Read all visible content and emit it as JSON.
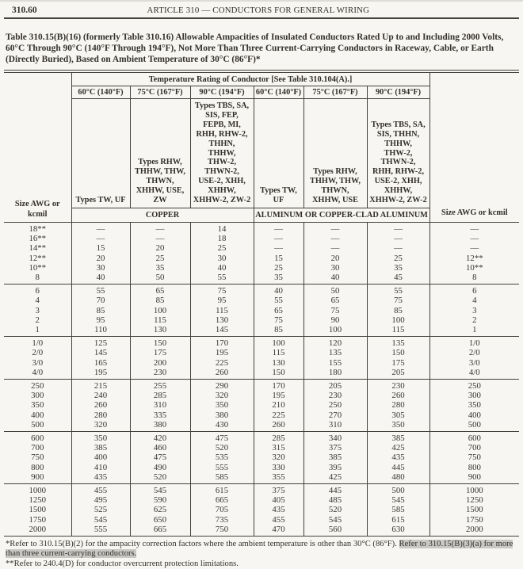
{
  "page": {
    "section_number": "310.60",
    "running_header": "ARTICLE 310 — CONDUCTORS FOR GENERAL WIRING",
    "table_title": "Table 310.15(B)(16)  (formerly Table 310.16) Allowable Ampacities of Insulated Conductors Rated Up to and Including 2000 Volts, 60°C Through 90°C (140°F Through 194°F), Not More Than Three Current-Carrying Conductors in Raceway, Cable, or Earth (Directly Buried), Based on Ambient Temperature of 30°C (86°F)*"
  },
  "table": {
    "temp_rating_header": "Temperature Rating of Conductor [See Table 310.104(A).]",
    "size_header_left": "Size AWG or\nkcmil",
    "size_header_right": "Size AWG or kcmil",
    "temp_columns": [
      "60°C (140°F)",
      "75°C (167°F)",
      "90°C (194°F)",
      "60°C (140°F)",
      "75°C (167°F)",
      "90°C (194°F)"
    ],
    "type_columns": [
      "Types TW, UF",
      "Types RHW,\nTHHW, THW,\nTHWN,\nXHHW, USE,\nZW",
      "Types TBS, SA,\nSIS, FEP,\nFEPB, MI,\nRHH, RHW-2,\nTHHN,\nTHHW,\nTHW-2,\nTHWN-2,\nUSE-2, XHH,\nXHHW,\nXHHW-2, ZW-2",
      "Types TW, UF",
      "Types RHW,\nTHHW, THW,\nTHWN,\nXHHW, USE",
      "Types TBS, SA,\nSIS, THHN,\nTHHW,\nTHW-2,\nTHWN-2,\nRHH, RHW-2,\nUSE-2, XHH,\nXHHW,\nXHHW-2, ZW-2"
    ],
    "material_headers": [
      "COPPER",
      "ALUMINUM OR COPPER-CLAD ALUMINUM"
    ],
    "groups": [
      {
        "rows": [
          [
            "18**",
            "—",
            "—",
            "14",
            "—",
            "—",
            "—",
            "—"
          ],
          [
            "16**",
            "—",
            "—",
            "18",
            "—",
            "—",
            "—",
            "—"
          ],
          [
            "14**",
            "15",
            "20",
            "25",
            "—",
            "—",
            "—",
            "—"
          ],
          [
            "12**",
            "20",
            "25",
            "30",
            "15",
            "20",
            "25",
            "12**"
          ],
          [
            "10**",
            "30",
            "35",
            "40",
            "25",
            "30",
            "35",
            "10**"
          ],
          [
            "8",
            "40",
            "50",
            "55",
            "35",
            "40",
            "45",
            "8"
          ]
        ]
      },
      {
        "rows": [
          [
            "6",
            "55",
            "65",
            "75",
            "40",
            "50",
            "55",
            "6"
          ],
          [
            "4",
            "70",
            "85",
            "95",
            "55",
            "65",
            "75",
            "4"
          ],
          [
            "3",
            "85",
            "100",
            "115",
            "65",
            "75",
            "85",
            "3"
          ],
          [
            "2",
            "95",
            "115",
            "130",
            "75",
            "90",
            "100",
            "2"
          ],
          [
            "1",
            "110",
            "130",
            "145",
            "85",
            "100",
            "115",
            "1"
          ]
        ]
      },
      {
        "rows": [
          [
            "1/0",
            "125",
            "150",
            "170",
            "100",
            "120",
            "135",
            "1/0"
          ],
          [
            "2/0",
            "145",
            "175",
            "195",
            "115",
            "135",
            "150",
            "2/0"
          ],
          [
            "3/0",
            "165",
            "200",
            "225",
            "130",
            "155",
            "175",
            "3/0"
          ],
          [
            "4/0",
            "195",
            "230",
            "260",
            "150",
            "180",
            "205",
            "4/0"
          ]
        ]
      },
      {
        "rows": [
          [
            "250",
            "215",
            "255",
            "290",
            "170",
            "205",
            "230",
            "250"
          ],
          [
            "300",
            "240",
            "285",
            "320",
            "195",
            "230",
            "260",
            "300"
          ],
          [
            "350",
            "260",
            "310",
            "350",
            "210",
            "250",
            "280",
            "350"
          ],
          [
            "400",
            "280",
            "335",
            "380",
            "225",
            "270",
            "305",
            "400"
          ],
          [
            "500",
            "320",
            "380",
            "430",
            "260",
            "310",
            "350",
            "500"
          ]
        ]
      },
      {
        "rows": [
          [
            "600",
            "350",
            "420",
            "475",
            "285",
            "340",
            "385",
            "600"
          ],
          [
            "700",
            "385",
            "460",
            "520",
            "315",
            "375",
            "425",
            "700"
          ],
          [
            "750",
            "400",
            "475",
            "535",
            "320",
            "385",
            "435",
            "750"
          ],
          [
            "800",
            "410",
            "490",
            "555",
            "330",
            "395",
            "445",
            "800"
          ],
          [
            "900",
            "435",
            "520",
            "585",
            "355",
            "425",
            "480",
            "900"
          ]
        ]
      },
      {
        "rows": [
          [
            "1000",
            "455",
            "545",
            "615",
            "375",
            "445",
            "500",
            "1000"
          ],
          [
            "1250",
            "495",
            "590",
            "665",
            "405",
            "485",
            "545",
            "1250"
          ],
          [
            "1500",
            "525",
            "625",
            "705",
            "435",
            "520",
            "585",
            "1500"
          ],
          [
            "1750",
            "545",
            "650",
            "735",
            "455",
            "545",
            "615",
            "1750"
          ],
          [
            "2000",
            "555",
            "665",
            "750",
            "470",
            "560",
            "630",
            "2000"
          ]
        ]
      }
    ]
  },
  "footnotes": {
    "fn1_text": "*Refer to 310.15(B)(2) for the ampacity correction factors where the ambient temperature is other than 30°C (86°F). ",
    "fn1_highlight": "Refer to 310.15(B)(3)(a) for more than three current-carrying conductors.",
    "fn2": "**Refer to 240.4(D) for conductor overcurrent protection limitations."
  }
}
